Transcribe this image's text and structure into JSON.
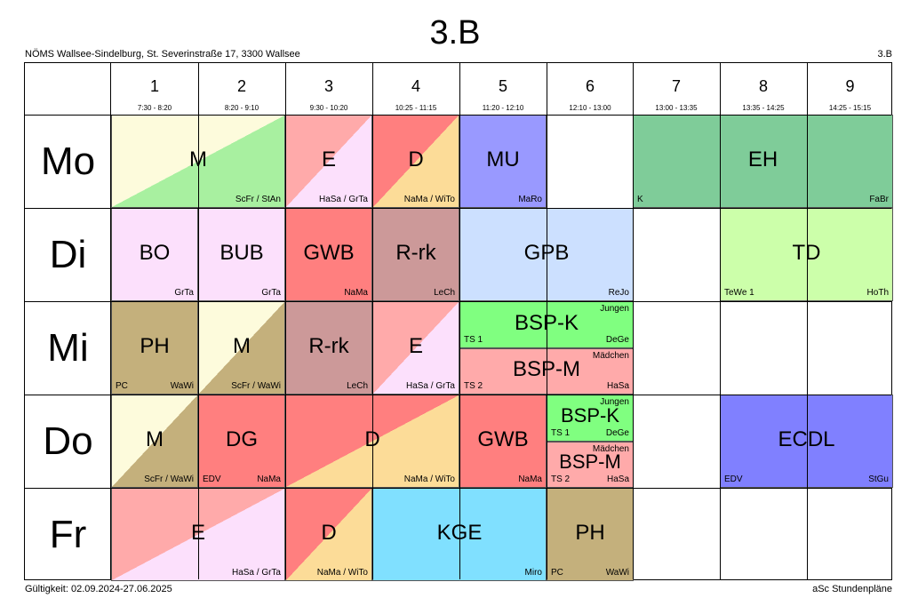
{
  "title": "3.B",
  "school": "NÖMS Wallsee-Sindelburg, St. Severinstraße 17, 3300 Wallsee",
  "class_label": "3.B",
  "validity": "Gültigkeit: 02.09.2024-27.06.2025",
  "software": "aSc Stundenpläne",
  "periods": [
    {
      "num": "1",
      "time": "7:30 - 8:20"
    },
    {
      "num": "2",
      "time": "8:20 - 9:10"
    },
    {
      "num": "3",
      "time": "9:30 - 10:20"
    },
    {
      "num": "4",
      "time": "10:25 - 11:15"
    },
    {
      "num": "5",
      "time": "11:20 - 12:10"
    },
    {
      "num": "6",
      "time": "12:10 - 13:00"
    },
    {
      "num": "7",
      "time": "13:00 - 13:35"
    },
    {
      "num": "8",
      "time": "13:35 - 14:25"
    },
    {
      "num": "9",
      "time": "14:25 - 15:15"
    }
  ],
  "days": [
    "Mo",
    "Di",
    "Mi",
    "Do",
    "Fr"
  ],
  "colors": {
    "mathe_green": "#a8f0a0",
    "pale_yellow": "#fdfbdc",
    "english_pink": "#ffaaaa",
    "english_lilac": "#fce0fc",
    "deutsch_red": "#ff7f7f",
    "deutsch_orange": "#fcdc98",
    "music_blue": "#9999ff",
    "eh_green": "#7fcc99",
    "gwb_red": "#ff7f7f",
    "religion": "#cc9999",
    "gpb_blue": "#cce0ff",
    "td_green": "#ccffaa",
    "physics": "#c4b07c",
    "bsp_k_green": "#80ff80",
    "bsp_m_pink": "#ffaaaa",
    "ecdl_blue": "#8080ff",
    "kge_cyan": "#80e0ff",
    "bo_lilac": "#fce0fc"
  },
  "lessons": {
    "mo_m": {
      "subject": "M",
      "teacher": "ScFr / StAn"
    },
    "mo_e": {
      "subject": "E",
      "teacher": "HaSa / GrTa"
    },
    "mo_d": {
      "subject": "D",
      "teacher": "NaMa / WiTo"
    },
    "mo_mu": {
      "subject": "MU",
      "teacher": "MaRo"
    },
    "mo_eh": {
      "subject": "EH",
      "teacher": "FaBr",
      "room": "K"
    },
    "di_bo": {
      "subject": "BO",
      "teacher": "GrTa"
    },
    "di_bub": {
      "subject": "BUB",
      "teacher": "GrTa"
    },
    "di_gwb": {
      "subject": "GWB",
      "teacher": "NaMa"
    },
    "di_rrk": {
      "subject": "R-rk",
      "teacher": "LeCh"
    },
    "di_gpb": {
      "subject": "GPB",
      "teacher": "ReJo"
    },
    "di_td": {
      "subject": "TD",
      "teacher": "HoTh",
      "room": "TeWe 1"
    },
    "mi_ph": {
      "subject": "PH",
      "teacher": "WaWi",
      "room": "PC"
    },
    "mi_m": {
      "subject": "M",
      "teacher": "ScFr / WaWi"
    },
    "mi_rrk": {
      "subject": "R-rk",
      "teacher": "LeCh"
    },
    "mi_e": {
      "subject": "E",
      "teacher": "HaSa / GrTa"
    },
    "mi_bspk": {
      "subject": "BSP-K",
      "teacher": "DeGe",
      "room": "TS 1",
      "group": "Jungen"
    },
    "mi_bspm": {
      "subject": "BSP-M",
      "teacher": "HaSa",
      "room": "TS 2",
      "group": "Mädchen"
    },
    "do_m": {
      "subject": "M",
      "teacher": "ScFr / WaWi"
    },
    "do_dg": {
      "subject": "DG",
      "teacher": "NaMa",
      "room": "EDV"
    },
    "do_d": {
      "subject": "D",
      "teacher": "NaMa / WiTo"
    },
    "do_gwb": {
      "subject": "GWB",
      "teacher": "NaMa"
    },
    "do_bspk": {
      "subject": "BSP-K",
      "teacher": "DeGe",
      "room": "TS 1",
      "group": "Jungen"
    },
    "do_bspm": {
      "subject": "BSP-M",
      "teacher": "HaSa",
      "room": "TS 2",
      "group": "Mädchen"
    },
    "do_ecdl": {
      "subject": "ECDL",
      "teacher": "StGu",
      "room": "EDV"
    },
    "fr_e": {
      "subject": "E",
      "teacher": "HaSa / GrTa"
    },
    "fr_d": {
      "subject": "D",
      "teacher": "NaMa / WiTo"
    },
    "fr_kge": {
      "subject": "KGE",
      "teacher": "Miro"
    },
    "fr_ph": {
      "subject": "PH",
      "teacher": "WaWi",
      "room": "PC"
    }
  }
}
